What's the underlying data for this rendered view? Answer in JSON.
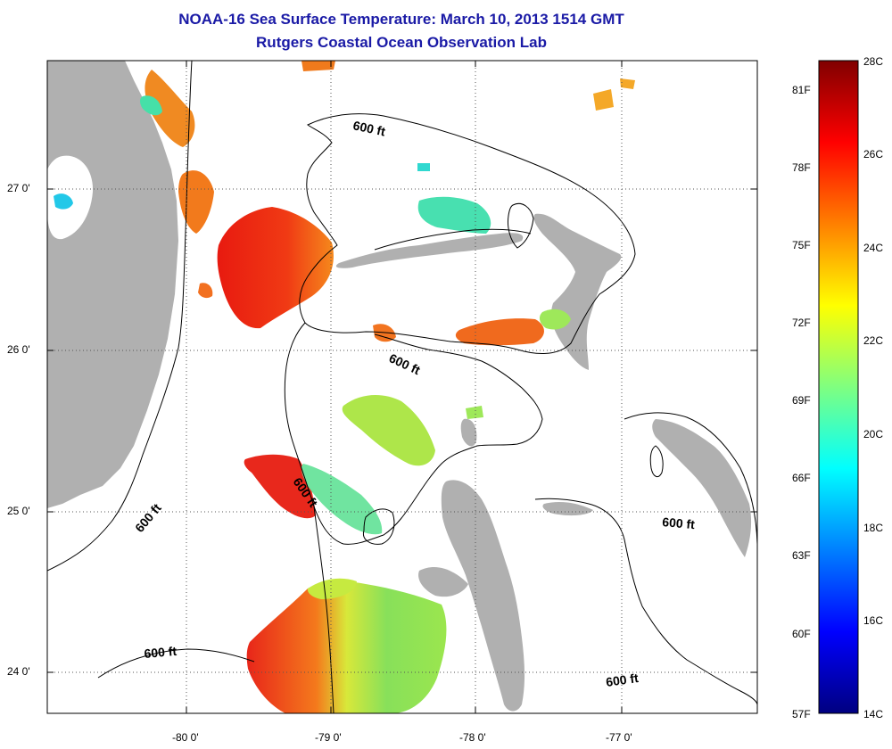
{
  "title": {
    "line1": "NOAA-16 Sea Surface Temperature:  March 10, 2013 1514 GMT",
    "line2": "Rutgers Coastal Ocean Observation Lab"
  },
  "map": {
    "x_tick_labels": [
      "-80 0'",
      "-79 0'",
      "-78 0'",
      "-77 0'"
    ],
    "y_tick_labels": [
      "27 0'",
      "26 0'",
      "25 0'",
      "24 0'"
    ],
    "contour_labels": [
      "600 ft",
      "600 ft",
      "600 ft",
      "600 ft",
      "600 ft",
      "600 ft"
    ],
    "colors": {
      "land": "#b0b0b0",
      "ocean_no_data": "#ffffff",
      "contour": "#000000"
    }
  },
  "colorbar": {
    "celsius_labels": [
      "28C",
      "26C",
      "24C",
      "22C",
      "20C",
      "18C",
      "16C",
      "14C"
    ],
    "fahrenheit_labels": [
      "81F",
      "78F",
      "75F",
      "72F",
      "69F",
      "66F",
      "63F",
      "60F",
      "57F"
    ],
    "range_c": [
      14,
      28
    ],
    "colormap": "jet"
  }
}
